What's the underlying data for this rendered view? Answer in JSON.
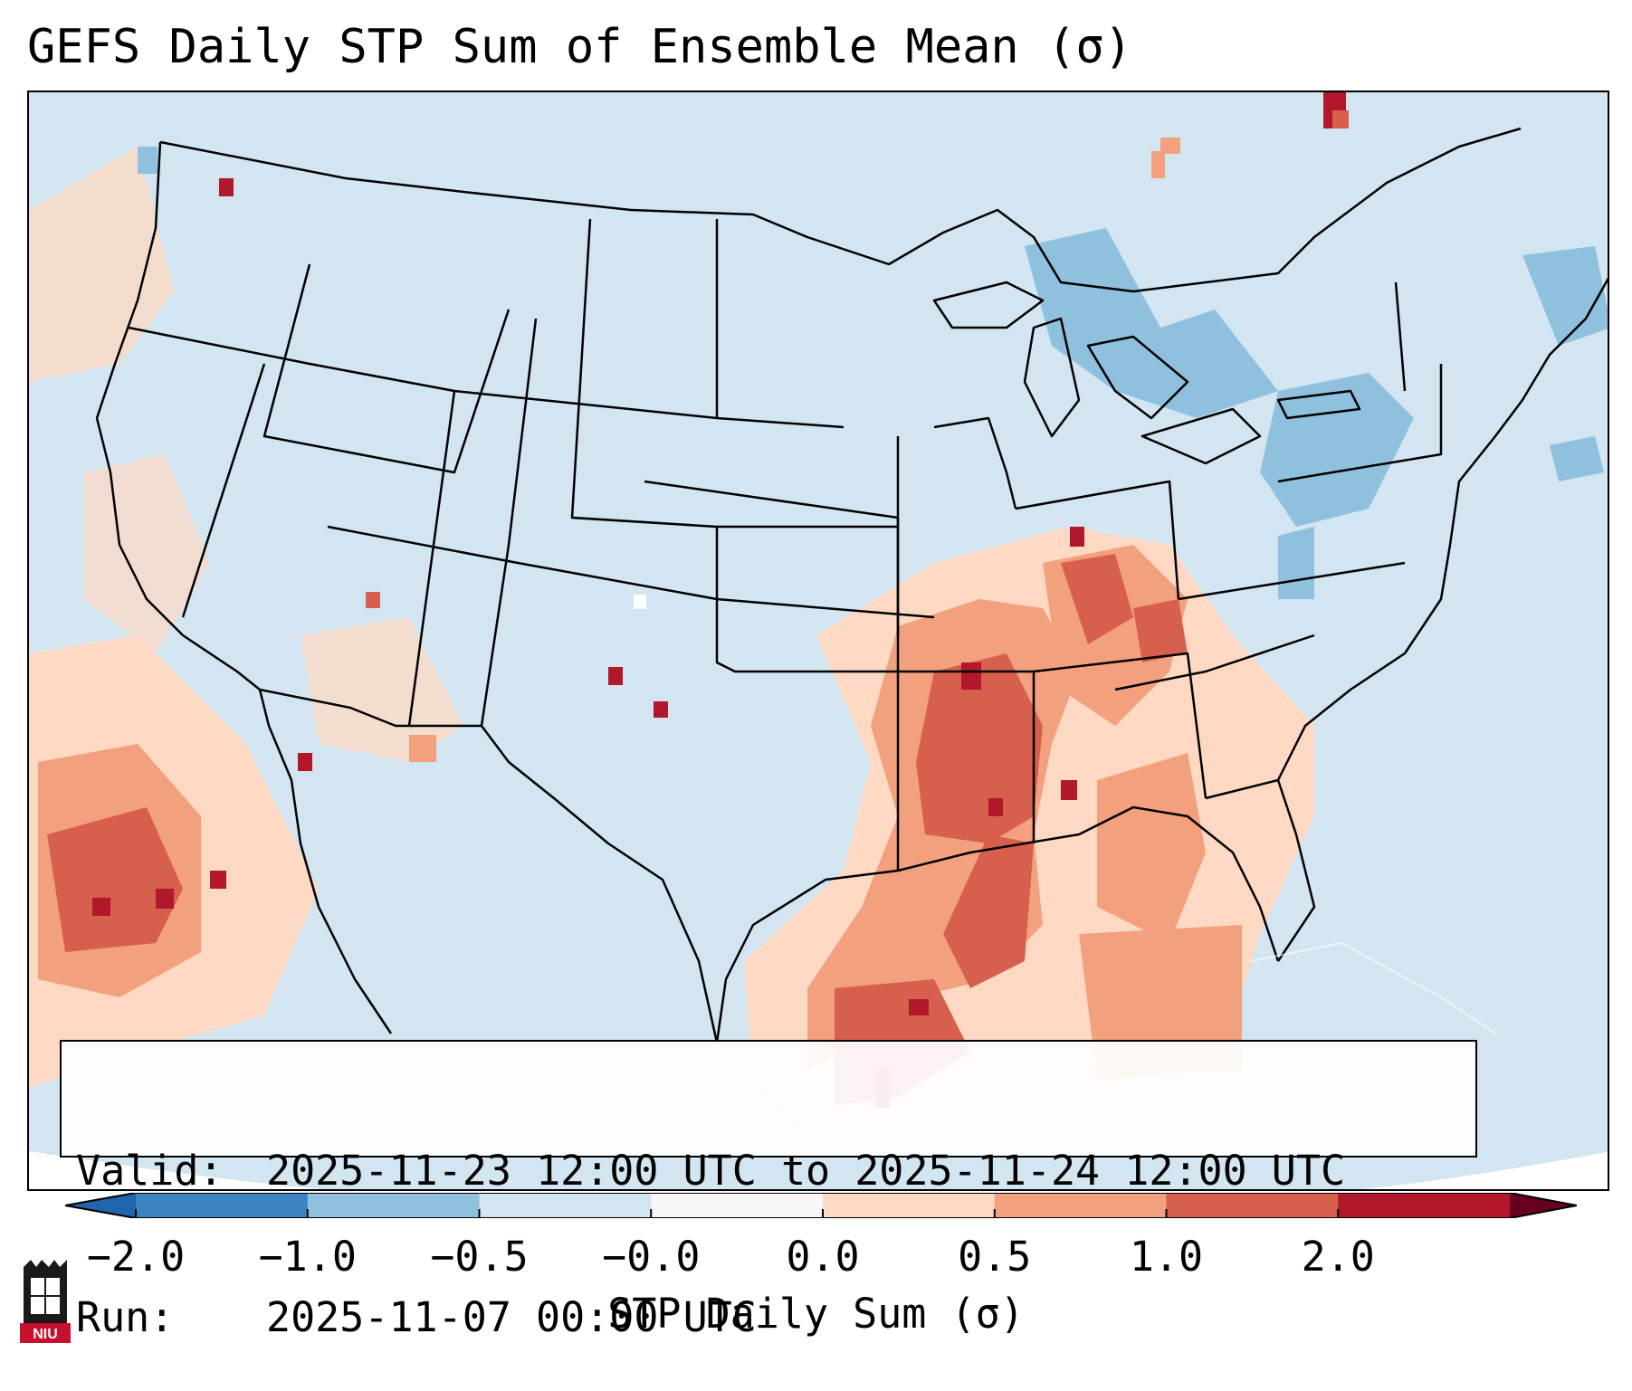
{
  "title": "GEFS Daily STP Sum of Ensemble Mean (σ)",
  "map": {
    "region": "CONUS",
    "anomaly_areas": [
      {
        "name": "Lower Mississippi / Tennessee Valley",
        "level": "1.0 to 2.0"
      },
      {
        "name": "Ohio Valley / Indiana",
        "level": "1.0 to 2.0"
      },
      {
        "name": "Texas Gulf Coast",
        "level": "1.0 to 2.0"
      },
      {
        "name": "Eastern Pacific off Baja",
        "level": "1.0 to 2.0"
      },
      {
        "name": "Great Lakes / Northeast",
        "level": "-1.0 to -0.5"
      }
    ]
  },
  "info": {
    "valid_label": "Valid:",
    "valid_value": "2025-11-23 12:00 UTC to 2025-11-24 12:00 UTC",
    "run_label": "Run:",
    "run_value": "2025-11-07 00:00 UTC"
  },
  "colorbar": {
    "ticks": [
      "−2.0",
      "−1.0",
      "−0.5",
      "−0.0",
      "0.0",
      "0.5",
      "1.0",
      "2.0"
    ],
    "colors": [
      "#3b82c0",
      "#8fc0de",
      "#d2e5f0",
      "#f7f7f7",
      "#fdd9c4",
      "#f2a07d",
      "#d6604d",
      "#b2182b"
    ],
    "label": "STP Daily Sum (σ)"
  },
  "logo": {
    "text": "NIU",
    "icon": "university-building-icon"
  },
  "colors": {
    "ocean_background": "#d2e5f0",
    "border": "#000000"
  }
}
